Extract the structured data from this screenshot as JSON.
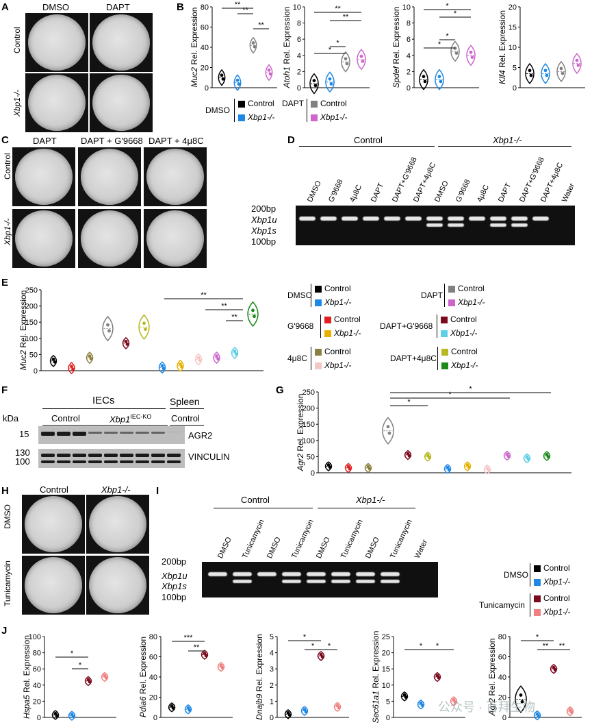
{
  "panels": {
    "A": "A",
    "B": "B",
    "C": "C",
    "D": "D",
    "E": "E",
    "F": "F",
    "G": "G",
    "H": "H",
    "I": "I",
    "J": "J"
  },
  "A": {
    "cols": [
      "DMSO",
      "DAPT"
    ],
    "rows": [
      "Control",
      "Xbp1-/-"
    ]
  },
  "C": {
    "cols": [
      "DAPT",
      "DAPT + G'9668",
      "DAPT + 4μ8C"
    ],
    "rows": [
      "Control",
      "Xbp1-/-"
    ]
  },
  "H": {
    "cols": [
      "Control",
      "Xbp1-/-"
    ],
    "rows": [
      "DMSO",
      "Tunicamycin"
    ]
  },
  "colors": {
    "dmso_control": "#000000",
    "dmso_xbp1": "#1e88e5",
    "dapt_control": "#808080",
    "dapt_xbp1": "#cc66cc",
    "g9668_control": "#e02020",
    "g9668_xbp1": "#e8b000",
    "u48c_control": "#8b8040",
    "u48c_xbp1": "#f5c6c6",
    "daptg_control": "#7a0a1e",
    "daptg_xbp1": "#5ccfe6",
    "dapt48_control": "#b8b820",
    "dapt48_xbp1": "#1a8a1a",
    "tuni_control": "#7a0a1e",
    "tuni_xbp1": "#f08080"
  },
  "B": {
    "legend": {
      "g1": "DMSO",
      "g2": "DAPT",
      "control": "Control",
      "xbp1": "Xbp1-/-"
    },
    "charts": [
      {
        "gene": "Muc2",
        "ylabel": "Rel. Expression",
        "yticks": [
          "0",
          "20",
          "40",
          "60",
          "80"
        ],
        "sig": [
          "**",
          "**",
          "**"
        ]
      },
      {
        "gene": "Atoh1",
        "ylabel": "Rel. Expression",
        "yticks": [
          "0",
          "2",
          "4",
          "6",
          "8",
          "10"
        ],
        "sig": [
          "*",
          "*",
          "**",
          "**"
        ]
      },
      {
        "gene": "Spdef",
        "ylabel": "Rel. Expression",
        "yticks": [
          "0",
          "2",
          "4",
          "6",
          "8",
          "10"
        ],
        "sig": [
          "*",
          "*",
          "*",
          "*"
        ]
      },
      {
        "gene": "Klf4",
        "ylabel": "Rel. Expression",
        "yticks": [
          "0",
          "5",
          "10",
          "15",
          "20"
        ],
        "sig": []
      }
    ]
  },
  "D": {
    "groups": [
      "Control",
      "Xbp1-/-"
    ],
    "lanes": [
      "DMSO",
      "G'9668",
      "4μ8C",
      "DAPT",
      "DAPT+G'9668",
      "DAPT+4μ8C",
      "DMSO",
      "G'9668",
      "4μ8C",
      "DAPT",
      "DAPT+G'9668",
      "DAPT+4μ8C",
      "Water"
    ],
    "markers": [
      "200bp",
      "Xbp1u",
      "Xbp1s",
      "100bp"
    ]
  },
  "E": {
    "gene": "Muc2",
    "ylabel": "Rel. Expression",
    "yticks": [
      "0",
      "50",
      "100",
      "150",
      "200",
      "250"
    ],
    "sig": [
      "**",
      "**",
      "**"
    ],
    "legend": [
      {
        "group": "DMSO",
        "items": [
          "Control",
          "Xbp1-/-"
        ]
      },
      {
        "group": "DAPT",
        "items": [
          "Control",
          "Xbp1-/-"
        ]
      },
      {
        "group": "G'9668",
        "items": [
          "Control",
          "Xbp1-/-"
        ]
      },
      {
        "group": "DAPT+G'9668",
        "items": [
          "Control",
          "Xbp1-/-"
        ]
      },
      {
        "group": "4μ8C",
        "items": [
          "Control",
          "Xbp1-/-"
        ]
      },
      {
        "group": "DAPT+4μ8C",
        "items": [
          "Control",
          "Xbp1-/-"
        ]
      }
    ]
  },
  "F": {
    "kda": "kDa",
    "mw": [
      "15",
      "130",
      "100"
    ],
    "groups": [
      "IECs",
      "Spleen"
    ],
    "sub": [
      "Control",
      "Xbp1",
      "IEC-KO",
      "Control"
    ],
    "proteins": [
      "AGR2",
      "VINCULIN"
    ]
  },
  "G": {
    "gene": "Agr2",
    "ylabel": "Rel. Expression",
    "yticks": [
      "0",
      "50",
      "100",
      "150",
      "200",
      "250"
    ],
    "sig": [
      "*",
      "*",
      "*"
    ]
  },
  "I": {
    "groups": [
      "Control",
      "Xbp1-/-"
    ],
    "lanes": [
      "DMSO",
      "Tunicamycin",
      "DMSO",
      "Tunicamycin",
      "DMSO",
      "Tunicamycin",
      "DMSO",
      "Tunicamycin",
      "Water"
    ],
    "markers": [
      "200bp",
      "Xbp1u",
      "Xbp1s",
      "100bp"
    ],
    "legend": {
      "g1": "DMSO",
      "g2": "Tunicamycin",
      "control": "Control",
      "xbp1": "Xbp1-/-"
    }
  },
  "J": {
    "charts": [
      {
        "gene": "Hspa5",
        "ylabel": "Rel. Expression",
        "yticks": [
          "0",
          "20",
          "40",
          "60",
          "80",
          "100"
        ],
        "sig": [
          "*",
          "*"
        ]
      },
      {
        "gene": "Pdia6",
        "ylabel": "Rel. Expression",
        "yticks": [
          "0",
          "20",
          "40",
          "60",
          "80"
        ],
        "sig": [
          "***",
          "**"
        ]
      },
      {
        "gene": "Dnajb9",
        "ylabel": "Rel. Expression",
        "yticks": [
          "0",
          "1",
          "2",
          "3",
          "4",
          "5"
        ],
        "sig": [
          "*",
          "*",
          "*"
        ]
      },
      {
        "gene": "Sec61a1",
        "ylabel": "Rel. Expression",
        "yticks": [
          "0",
          "5",
          "10",
          "15",
          "20",
          "25"
        ],
        "sig": [
          "*",
          "*"
        ]
      },
      {
        "gene": "Agr2",
        "ylabel": "Rel. Expression",
        "yticks": [
          "0",
          "20",
          "40",
          "60",
          "80"
        ],
        "sig": [
          "*",
          "**",
          "**"
        ]
      }
    ]
  },
  "watermark": "公众号 · 百拜生物",
  "chart_data": [
    {
      "type": "scatter",
      "title": "",
      "ylabel": "Muc2 Rel. Expression",
      "categories": [
        "DMSO Control",
        "DMSO Xbp1-/-",
        "DAPT Control",
        "DAPT Xbp1-/-"
      ],
      "values": [
        10,
        5,
        42,
        15
      ],
      "ylim": [
        0,
        80
      ]
    },
    {
      "type": "scatter",
      "title": "",
      "ylabel": "Atoh1 Rel. Expression",
      "categories": [
        "DMSO Control",
        "DMSO Xbp1-/-",
        "DAPT Control",
        "DAPT Xbp1-/-"
      ],
      "values": [
        0.5,
        0.7,
        3.2,
        3.5
      ],
      "ylim": [
        0,
        10
      ]
    },
    {
      "type": "scatter",
      "title": "",
      "ylabel": "Spdef Rel. Expression",
      "categories": [
        "DMSO Control",
        "DMSO Xbp1-/-",
        "DAPT Control",
        "DAPT Xbp1-/-"
      ],
      "values": [
        1,
        1,
        4.5,
        4
      ],
      "ylim": [
        0,
        10
      ]
    },
    {
      "type": "scatter",
      "title": "",
      "ylabel": "Klf4 Rel. Expression",
      "categories": [
        "DMSO Control",
        "DMSO Xbp1-/-",
        "DAPT Control",
        "DAPT Xbp1-/-"
      ],
      "values": [
        3.5,
        3.5,
        4,
        6
      ],
      "ylim": [
        0,
        20
      ]
    },
    {
      "type": "scatter",
      "title": "",
      "ylabel": "Muc2 Rel. Expression",
      "categories": [
        "DMSO C",
        "DMSO X",
        "G'9668 C",
        "G'9668 X",
        "4μ8C C",
        "4μ8C X",
        "DAPT C",
        "DAPT X",
        "DAPT+G'9668 C",
        "DAPT+G'9668 X",
        "DAPT+4μ8C C",
        "DAPT+4μ8C X"
      ],
      "values": [
        30,
        8,
        40,
        130,
        85,
        135,
        10,
        15,
        35,
        40,
        55,
        175
      ],
      "ylim": [
        0,
        250
      ]
    },
    {
      "type": "scatter",
      "title": "",
      "ylabel": "Agr2 Rel. Expression",
      "categories": [
        "DMSO C",
        "DMSO X",
        "G'9668 C",
        "G'9668 X",
        "4μ8C C",
        "4μ8C X",
        "DAPT C",
        "DAPT X",
        "DAPT+G'9668 C",
        "DAPT+G'9668 X",
        "DAPT+4μ8C C",
        "DAPT+4μ8C X"
      ],
      "values": [
        20,
        15,
        15,
        130,
        55,
        50,
        12,
        20,
        10,
        53,
        45,
        52
      ],
      "ylim": [
        0,
        250
      ]
    },
    {
      "type": "scatter",
      "ylabel": "Hspa5 Rel. Expression",
      "categories": [
        "DMSO C",
        "DMSO X",
        "Tuni C",
        "Tuni X"
      ],
      "values": [
        3,
        2,
        45,
        50
      ],
      "ylim": [
        0,
        100
      ]
    },
    {
      "type": "scatter",
      "ylabel": "Pdia6 Rel. Expression",
      "categories": [
        "DMSO C",
        "DMSO X",
        "Tuni C",
        "Tuni X"
      ],
      "values": [
        10,
        8,
        62,
        50
      ],
      "ylim": [
        0,
        80
      ]
    },
    {
      "type": "scatter",
      "ylabel": "Dnajb9 Rel. Expression",
      "categories": [
        "DMSO C",
        "DMSO X",
        "Tuni C",
        "Tuni X"
      ],
      "values": [
        0.2,
        0.4,
        3.8,
        0.65
      ],
      "ylim": [
        0,
        5
      ]
    },
    {
      "type": "scatter",
      "ylabel": "Sec61a1 Rel. Expression",
      "categories": [
        "DMSO C",
        "DMSO X",
        "Tuni C",
        "Tuni X"
      ],
      "values": [
        6.5,
        4,
        12.5,
        5
      ],
      "ylim": [
        0,
        25
      ]
    },
    {
      "type": "scatter",
      "ylabel": "Agr2 Rel. Expression",
      "categories": [
        "DMSO C",
        "DMSO X",
        "Tuni C",
        "Tuni X"
      ],
      "values": [
        18,
        2,
        48,
        6
      ],
      "ylim": [
        0,
        80
      ]
    }
  ]
}
